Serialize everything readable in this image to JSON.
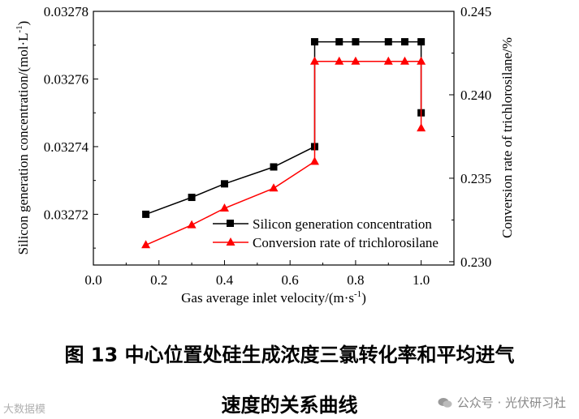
{
  "chart_data": {
    "type": "line",
    "title": "",
    "xlabel": "Gas average inlet velocity/(m·s⁻¹)",
    "ylabel_left": "Silicon generation concentration/(mol·L⁻¹)",
    "ylabel_right": "Conversion rate of trichlorosilane/%",
    "xlim": [
      0.0,
      1.1
    ],
    "ylim_left": [
      0.032705,
      0.03278
    ],
    "ylim_right": [
      0.2298,
      0.245
    ],
    "xticks": [
      0.0,
      0.2,
      0.4,
      0.6,
      0.8,
      1.0
    ],
    "xtick_labels": [
      "0.0",
      "0.2",
      "0.4",
      "0.6",
      "0.8",
      "1.0"
    ],
    "yticks_left": [
      0.03272,
      0.03274,
      0.03276,
      0.03278
    ],
    "ytick_labels_left": [
      "0.03272",
      "0.03274",
      "0.03276",
      "0.03278"
    ],
    "yticks_right": [
      0.23,
      0.235,
      0.24,
      0.245
    ],
    "ytick_labels_right": [
      "0.230",
      "0.235",
      "0.240",
      "0.245"
    ],
    "legend_position": "bottom-right",
    "series": [
      {
        "name": "Silicon generation concentration",
        "axis": "left",
        "color": "#000000",
        "marker": "square",
        "x": [
          0.16,
          0.3,
          0.4,
          0.55,
          0.675,
          0.675,
          0.75,
          0.8,
          0.9,
          0.95,
          1.0,
          1.0
        ],
        "values": [
          0.03272,
          0.032725,
          0.032729,
          0.032734,
          0.03274,
          0.032771,
          0.032771,
          0.032771,
          0.032771,
          0.032771,
          0.032771,
          0.03275
        ]
      },
      {
        "name": "Conversion rate of trichlorosilane",
        "axis": "right",
        "color": "#ff0000",
        "marker": "triangle",
        "x": [
          0.16,
          0.3,
          0.4,
          0.55,
          0.675,
          0.675,
          0.75,
          0.8,
          0.9,
          0.95,
          1.0,
          1.0
        ],
        "values": [
          0.231,
          0.2322,
          0.2332,
          0.2344,
          0.236,
          0.242,
          0.242,
          0.242,
          0.242,
          0.242,
          0.242,
          0.238
        ]
      }
    ]
  },
  "caption": {
    "line1": "图 13 中心位置处硅生成浓度三氯转化率和平均进气",
    "line2": "速度的关系曲线"
  },
  "watermarks": {
    "left": "大数据模",
    "right": "公众号 · 光伏研习社"
  }
}
